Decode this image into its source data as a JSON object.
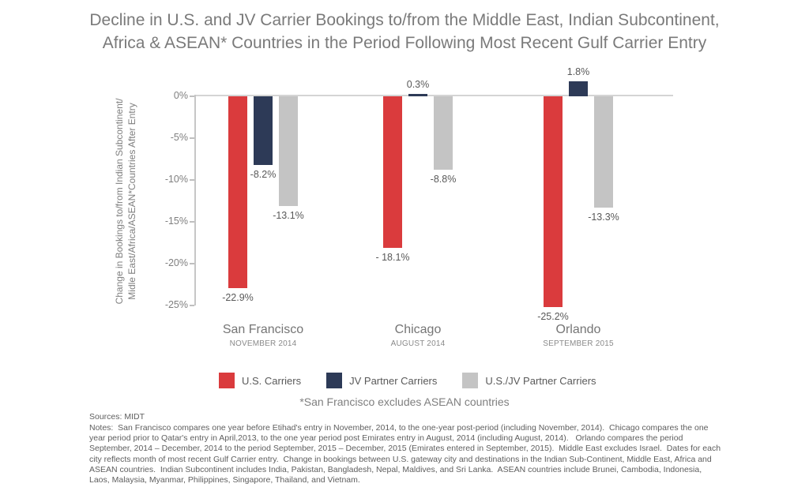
{
  "title": {
    "line1": "Decline in U.S. and JV Carrier Bookings to/from the Middle East, Indian Subcontinent,",
    "line2": "Africa & ASEAN* Countries in the Period Following Most Recent Gulf Carrier Entry"
  },
  "chart_data": {
    "type": "bar",
    "title": "Decline in U.S. and JV Carrier Bookings to/from the Middle East, Indian Subcontinent, Africa & ASEAN* Countries in the Period Following Most Recent Gulf Carrier Entry",
    "categories": [
      {
        "city": "San Francisco",
        "subtitle": "NOVEMBER 2014"
      },
      {
        "city": "Chicago",
        "subtitle": "AUGUST 2014"
      },
      {
        "city": "Orlando",
        "subtitle": "SEPTEMBER 2015"
      }
    ],
    "series": [
      {
        "name": "U.S. Carriers",
        "color": "#da3b3d",
        "values": [
          -22.9,
          -18.1,
          -25.2
        ],
        "value_labels": [
          "-22.9%",
          "- 18.1%",
          "-25.2%"
        ]
      },
      {
        "name": "JV Partner Carriers",
        "color": "#2d3a57",
        "values": [
          -8.2,
          0.3,
          1.8
        ],
        "value_labels": [
          "-8.2%",
          "0.3%",
          "1.8%"
        ]
      },
      {
        "name": "U.S./JV Partner Carriers",
        "color": "#c4c4c4",
        "values": [
          -13.1,
          -8.8,
          -13.3
        ],
        "value_labels": [
          "-13.1%",
          "-8.8%",
          "-13.3%"
        ]
      }
    ],
    "xlabel": "",
    "ylabel": "Change in Bookings to/from Indian Subcontinent/ Midle East/Africa/ASEAN*Countries After Entry",
    "ylabel_line1": "Change in Bookings to/from Indian Subcontinent/",
    "ylabel_line2": "Midle East/Africa/ASEAN*Countries After Entry",
    "yticks": [
      {
        "label": "0%",
        "value": 0
      },
      {
        "label": "-5%",
        "value": -5
      },
      {
        "label": "-10%",
        "value": -10
      },
      {
        "label": "-15%",
        "value": -15
      },
      {
        "label": "-20%",
        "value": -20
      },
      {
        "label": "-25%",
        "value": -25
      }
    ],
    "ylim": [
      -25,
      2.5
    ],
    "grid": false,
    "legend_position": "bottom"
  },
  "footnote": "*San Francisco excludes ASEAN countries",
  "sources": "Sources: MIDT",
  "notes": "Notes:  San Francisco compares one year before Etihad's entry in November, 2014, to the one-year post-period (including November, 2014).  Chicago compares the one year period prior to Qatar's entry in April,2013, to the one year period post Emirates entry in August, 2014 (including August, 2014).   Orlando compares the period September, 2014 – December, 2014 to the period September, 2015 – December, 2015 (Emirates entered in September, 2015).  Middle East excludes Israel.  Dates for each city reflects month of most recent Gulf Carrier entry.  Change in bookings between U.S. gateway city and destinations in the Indian Sub-Continent, Middle East, Africa and ASEAN countries.  Indian Subcontinent includes India, Pakistan, Bangladesh, Nepal, Maldives, and Sri Lanka.  ASEAN countries include Brunei, Cambodia, Indonesia, Laos, Malaysia, Myanmar, Philippines, Singapore, Thailand, and Vietnam.",
  "colors": {
    "us_carriers": "#da3b3d",
    "jv_partner_carriers": "#2d3a57",
    "us_jv_partner_carriers": "#c4c4c4",
    "axis_line": "#c6c6c6",
    "zero_line": "#d4d4d4",
    "title_text": "#7a7a7a",
    "value_label_text": "#595959",
    "muted_text": "#7f7f7f"
  }
}
